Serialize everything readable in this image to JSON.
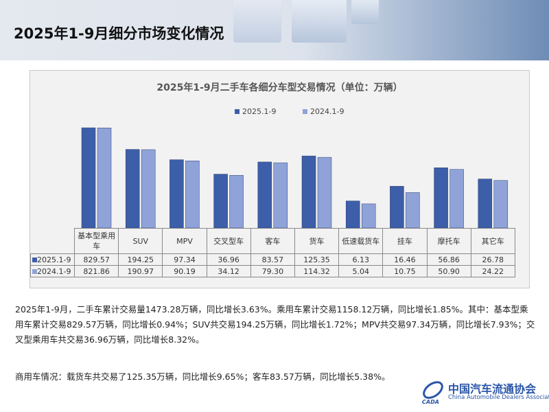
{
  "page_title": "2025年1-9月细分市场变化情况",
  "chart_data": {
    "type": "bar",
    "title": "2025年1-9月二手车各细分车型交易情况（单位：万辆）",
    "categories": [
      "基本型乘用车",
      "SUV",
      "MPV",
      "交叉型车",
      "客车",
      "货车",
      "低速载货车",
      "挂车",
      "摩托车",
      "其它车"
    ],
    "series": [
      {
        "name": "2025.1-9",
        "color": "#3d5ea8",
        "values": [
          "829.57",
          "194.25",
          "97.34",
          "36.96",
          "83.57",
          "125.35",
          "6.13",
          "16.46",
          "56.86",
          "26.78"
        ]
      },
      {
        "name": "2024.1-9",
        "color": "#8fa3d9",
        "values": [
          "821.86",
          "190.97",
          "90.19",
          "34.12",
          "79.30",
          "114.32",
          "5.04",
          "10.75",
          "50.90",
          "24.22"
        ]
      }
    ],
    "y_scale": "log",
    "y_min": 1,
    "grid": false,
    "legend": "top",
    "data_table": true
  },
  "paragraphs": [
    "2025年1-9月，二手车累计交易量1473.28万辆，同比增长3.63%。乘用车累计交易1158.12万辆，同比增长1.85%。其中：基本型乘用车累计交易829.57万辆，同比增长0.94%；SUV共交易194.25万辆，同比增长1.72%；MPV共交易97.34万辆，同比增长7.93%；交叉型乘用车共交易36.96万辆，同比增长8.32%。",
    "商用车情况：载货车共交易了125.35万辆，同比增长9.65%；客车83.57万辆，同比增长5.38%。"
  ],
  "logo": {
    "cn": "中国汽车流通协会",
    "en": "China Automobile Dealers Association",
    "abbr": "CADA"
  }
}
